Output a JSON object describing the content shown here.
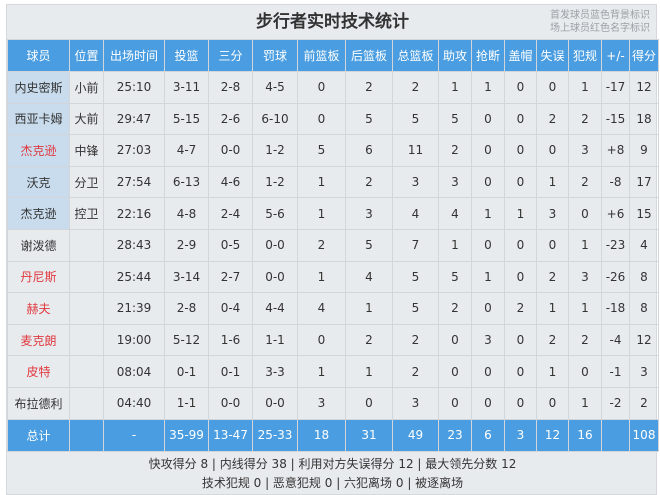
{
  "title": "步行者实时技术统计",
  "note": {
    "line1": "首发球员蓝色背景标识",
    "line2": "场上球员红色名字标识"
  },
  "colors": {
    "header": "#4a9de0",
    "starter_bg": "#c9dced",
    "on_court_name": "#e0383e"
  },
  "columns": [
    "球员",
    "位置",
    "出场时间",
    "投篮",
    "三分",
    "罚球",
    "前篮板",
    "后篮板",
    "总篮板",
    "助攻",
    "抢断",
    "盖帽",
    "失误",
    "犯规",
    "+/-",
    "得分"
  ],
  "players": [
    {
      "starter": true,
      "on_court": false,
      "cells": [
        "内史密斯",
        "小前",
        "25:10",
        "3-11",
        "2-8",
        "4-5",
        "0",
        "2",
        "2",
        "1",
        "1",
        "0",
        "0",
        "1",
        "-17",
        "12"
      ]
    },
    {
      "starter": true,
      "on_court": false,
      "cells": [
        "西亚卡姆",
        "大前",
        "29:47",
        "5-15",
        "2-6",
        "6-10",
        "0",
        "5",
        "5",
        "5",
        "0",
        "0",
        "2",
        "2",
        "-15",
        "18"
      ]
    },
    {
      "starter": true,
      "on_court": true,
      "cells": [
        "杰克逊",
        "中锋",
        "27:03",
        "4-7",
        "0-0",
        "1-2",
        "5",
        "6",
        "11",
        "2",
        "0",
        "0",
        "0",
        "3",
        "+8",
        "9"
      ]
    },
    {
      "starter": true,
      "on_court": false,
      "cells": [
        "沃克",
        "分卫",
        "27:54",
        "6-13",
        "4-6",
        "1-2",
        "1",
        "2",
        "3",
        "3",
        "0",
        "0",
        "1",
        "2",
        "-8",
        "17"
      ]
    },
    {
      "starter": true,
      "on_court": false,
      "cells": [
        "杰克逊",
        "控卫",
        "22:16",
        "4-8",
        "2-4",
        "5-6",
        "1",
        "3",
        "4",
        "4",
        "1",
        "1",
        "3",
        "0",
        "+6",
        "15"
      ]
    },
    {
      "starter": false,
      "on_court": false,
      "cells": [
        "谢泼德",
        "",
        "28:43",
        "2-9",
        "0-5",
        "0-0",
        "2",
        "5",
        "7",
        "1",
        "0",
        "0",
        "0",
        "1",
        "-23",
        "4"
      ]
    },
    {
      "starter": false,
      "on_court": true,
      "cells": [
        "丹尼斯",
        "",
        "25:44",
        "3-14",
        "2-7",
        "0-0",
        "1",
        "4",
        "5",
        "5",
        "1",
        "0",
        "2",
        "3",
        "-26",
        "8"
      ]
    },
    {
      "starter": false,
      "on_court": true,
      "cells": [
        "赫夫",
        "",
        "21:39",
        "2-8",
        "0-4",
        "4-4",
        "4",
        "1",
        "5",
        "2",
        "0",
        "2",
        "1",
        "1",
        "-18",
        "8"
      ]
    },
    {
      "starter": false,
      "on_court": true,
      "cells": [
        "麦克朗",
        "",
        "19:00",
        "5-12",
        "1-6",
        "1-1",
        "0",
        "2",
        "2",
        "0",
        "3",
        "0",
        "2",
        "2",
        "-4",
        "12"
      ]
    },
    {
      "starter": false,
      "on_court": true,
      "cells": [
        "皮特",
        "",
        "08:04",
        "0-1",
        "0-1",
        "3-3",
        "1",
        "1",
        "2",
        "0",
        "0",
        "0",
        "1",
        "0",
        "-1",
        "3"
      ]
    },
    {
      "starter": false,
      "on_court": false,
      "cells": [
        "布拉德利",
        "",
        "04:40",
        "1-1",
        "0-0",
        "0-0",
        "3",
        "0",
        "3",
        "0",
        "0",
        "0",
        "0",
        "1",
        "-2",
        "2"
      ]
    }
  ],
  "total": [
    "总计",
    "",
    "-",
    "35-99",
    "13-47",
    "25-33",
    "18",
    "31",
    "49",
    "23",
    "6",
    "3",
    "12",
    "16",
    "",
    "108"
  ],
  "footer": {
    "line1": "快攻得分 8 | 内线得分 38 | 利用对方失误得分 12 | 最大领先分数 12",
    "line2": "技术犯规 0 | 恶意犯规 0 | 六犯离场 0 | 被逐离场"
  }
}
